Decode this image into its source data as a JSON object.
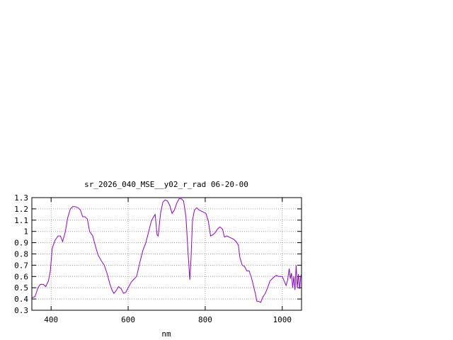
{
  "chart_data": {
    "type": "line",
    "title": "sr_2026_040_MSE__y02_r_rad 06-20-00",
    "xlabel": "nm",
    "ylabel": "",
    "xlim": [
      350,
      1050
    ],
    "ylim": [
      0.3,
      1.3
    ],
    "x_ticks": [
      "400",
      "600",
      "800",
      "1000"
    ],
    "x_tick_values": [
      400,
      600,
      800,
      1000
    ],
    "y_ticks": [
      "0.3",
      "0.4",
      "0.5",
      "0.6",
      "0.7",
      "0.8",
      "0.9",
      "1",
      "1.1",
      "1.2",
      "1.3"
    ],
    "y_tick_values": [
      0.3,
      0.4,
      0.5,
      0.6,
      0.7,
      0.8,
      0.9,
      1.0,
      1.1,
      1.2,
      1.3
    ],
    "grid": true,
    "series": [
      {
        "color": "#9400d3",
        "points": [
          [
            350,
            0.41
          ],
          [
            358,
            0.42
          ],
          [
            366,
            0.5
          ],
          [
            372,
            0.53
          ],
          [
            380,
            0.53
          ],
          [
            386,
            0.51
          ],
          [
            393,
            0.56
          ],
          [
            398,
            0.65
          ],
          [
            403,
            0.85
          ],
          [
            410,
            0.92
          ],
          [
            418,
            0.96
          ],
          [
            424,
            0.96
          ],
          [
            430,
            0.91
          ],
          [
            437,
            1.0
          ],
          [
            443,
            1.12
          ],
          [
            450,
            1.2
          ],
          [
            456,
            1.22
          ],
          [
            462,
            1.22
          ],
          [
            470,
            1.21
          ],
          [
            476,
            1.19
          ],
          [
            482,
            1.13
          ],
          [
            488,
            1.13
          ],
          [
            494,
            1.11
          ],
          [
            500,
            1.0
          ],
          [
            508,
            0.96
          ],
          [
            515,
            0.87
          ],
          [
            522,
            0.79
          ],
          [
            530,
            0.74
          ],
          [
            538,
            0.7
          ],
          [
            545,
            0.63
          ],
          [
            552,
            0.54
          ],
          [
            558,
            0.48
          ],
          [
            563,
            0.45
          ],
          [
            568,
            0.47
          ],
          [
            575,
            0.51
          ],
          [
            582,
            0.49
          ],
          [
            588,
            0.45
          ],
          [
            594,
            0.46
          ],
          [
            600,
            0.5
          ],
          [
            608,
            0.55
          ],
          [
            616,
            0.58
          ],
          [
            622,
            0.6
          ],
          [
            630,
            0.72
          ],
          [
            638,
            0.83
          ],
          [
            646,
            0.9
          ],
          [
            654,
            1.01
          ],
          [
            660,
            1.09
          ],
          [
            666,
            1.13
          ],
          [
            670,
            1.15
          ],
          [
            675,
            0.97
          ],
          [
            678,
            0.96
          ],
          [
            684,
            1.16
          ],
          [
            690,
            1.26
          ],
          [
            696,
            1.28
          ],
          [
            702,
            1.27
          ],
          [
            708,
            1.23
          ],
          [
            714,
            1.16
          ],
          [
            720,
            1.19
          ],
          [
            726,
            1.25
          ],
          [
            732,
            1.29
          ],
          [
            738,
            1.29
          ],
          [
            744,
            1.27
          ],
          [
            750,
            1.13
          ],
          [
            756,
            0.78
          ],
          [
            760,
            0.57
          ],
          [
            763,
            0.75
          ],
          [
            767,
            1.1
          ],
          [
            772,
            1.19
          ],
          [
            778,
            1.21
          ],
          [
            784,
            1.19
          ],
          [
            790,
            1.18
          ],
          [
            796,
            1.17
          ],
          [
            802,
            1.16
          ],
          [
            808,
            1.09
          ],
          [
            814,
            0.96
          ],
          [
            820,
            0.97
          ],
          [
            826,
            0.99
          ],
          [
            832,
            1.02
          ],
          [
            838,
            1.04
          ],
          [
            845,
            1.02
          ],
          [
            850,
            0.95
          ],
          [
            856,
            0.96
          ],
          [
            862,
            0.95
          ],
          [
            868,
            0.94
          ],
          [
            874,
            0.93
          ],
          [
            880,
            0.91
          ],
          [
            886,
            0.88
          ],
          [
            890,
            0.77
          ],
          [
            896,
            0.7
          ],
          [
            902,
            0.69
          ],
          [
            908,
            0.65
          ],
          [
            914,
            0.65
          ],
          [
            920,
            0.59
          ],
          [
            925,
            0.52
          ],
          [
            930,
            0.45
          ],
          [
            934,
            0.38
          ],
          [
            938,
            0.38
          ],
          [
            944,
            0.37
          ],
          [
            950,
            0.42
          ],
          [
            956,
            0.45
          ],
          [
            962,
            0.5
          ],
          [
            968,
            0.56
          ],
          [
            974,
            0.58
          ],
          [
            980,
            0.6
          ],
          [
            985,
            0.61
          ],
          [
            990,
            0.6
          ],
          [
            995,
            0.6
          ],
          [
            1000,
            0.6
          ],
          [
            1005,
            0.56
          ],
          [
            1010,
            0.52
          ],
          [
            1014,
            0.57
          ],
          [
            1018,
            0.67
          ],
          [
            1021,
            0.58
          ],
          [
            1024,
            0.63
          ],
          [
            1027,
            0.5
          ],
          [
            1030,
            0.6
          ],
          [
            1033,
            0.48
          ],
          [
            1036,
            0.7
          ],
          [
            1039,
            0.5
          ],
          [
            1042,
            0.62
          ],
          [
            1045,
            0.49
          ],
          [
            1048,
            0.6
          ],
          [
            1050,
            0.62
          ]
        ]
      }
    ]
  }
}
